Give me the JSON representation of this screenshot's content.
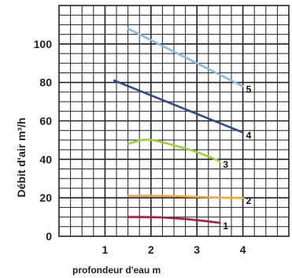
{
  "chart_data": {
    "type": "line",
    "title": "",
    "xlabel": "profondeur d'eau m",
    "ylabel": "Débit d'air m³/h",
    "xlim": [
      0,
      5
    ],
    "ylim": [
      0,
      120
    ],
    "grid": true,
    "x_ticks": [
      "1",
      "2",
      "3",
      "4"
    ],
    "y_ticks": [
      "0",
      "20",
      "40",
      "60",
      "80",
      "100"
    ],
    "series": [
      {
        "name": "5",
        "color": "#8db8e2",
        "points": [
          [
            1.5,
            108
          ],
          [
            4.0,
            78
          ]
        ]
      },
      {
        "name": "4",
        "color": "#2f4a8c",
        "points": [
          [
            1.2,
            81
          ],
          [
            4.0,
            54
          ]
        ]
      },
      {
        "name": "3",
        "color": "#9ad13a",
        "points": [
          [
            1.5,
            48
          ],
          [
            1.9,
            51
          ],
          [
            2.4,
            48
          ],
          [
            3.0,
            44
          ],
          [
            3.5,
            39
          ]
        ]
      },
      {
        "name": "2",
        "color": "#f0a838",
        "points": [
          [
            1.5,
            21
          ],
          [
            2.5,
            21
          ],
          [
            3.5,
            20
          ],
          [
            4.0,
            20
          ]
        ]
      },
      {
        "name": "1",
        "color": "#a5203a",
        "points": [
          [
            1.5,
            10
          ],
          [
            2.1,
            10
          ],
          [
            2.8,
            9
          ],
          [
            3.5,
            7
          ]
        ]
      }
    ]
  }
}
